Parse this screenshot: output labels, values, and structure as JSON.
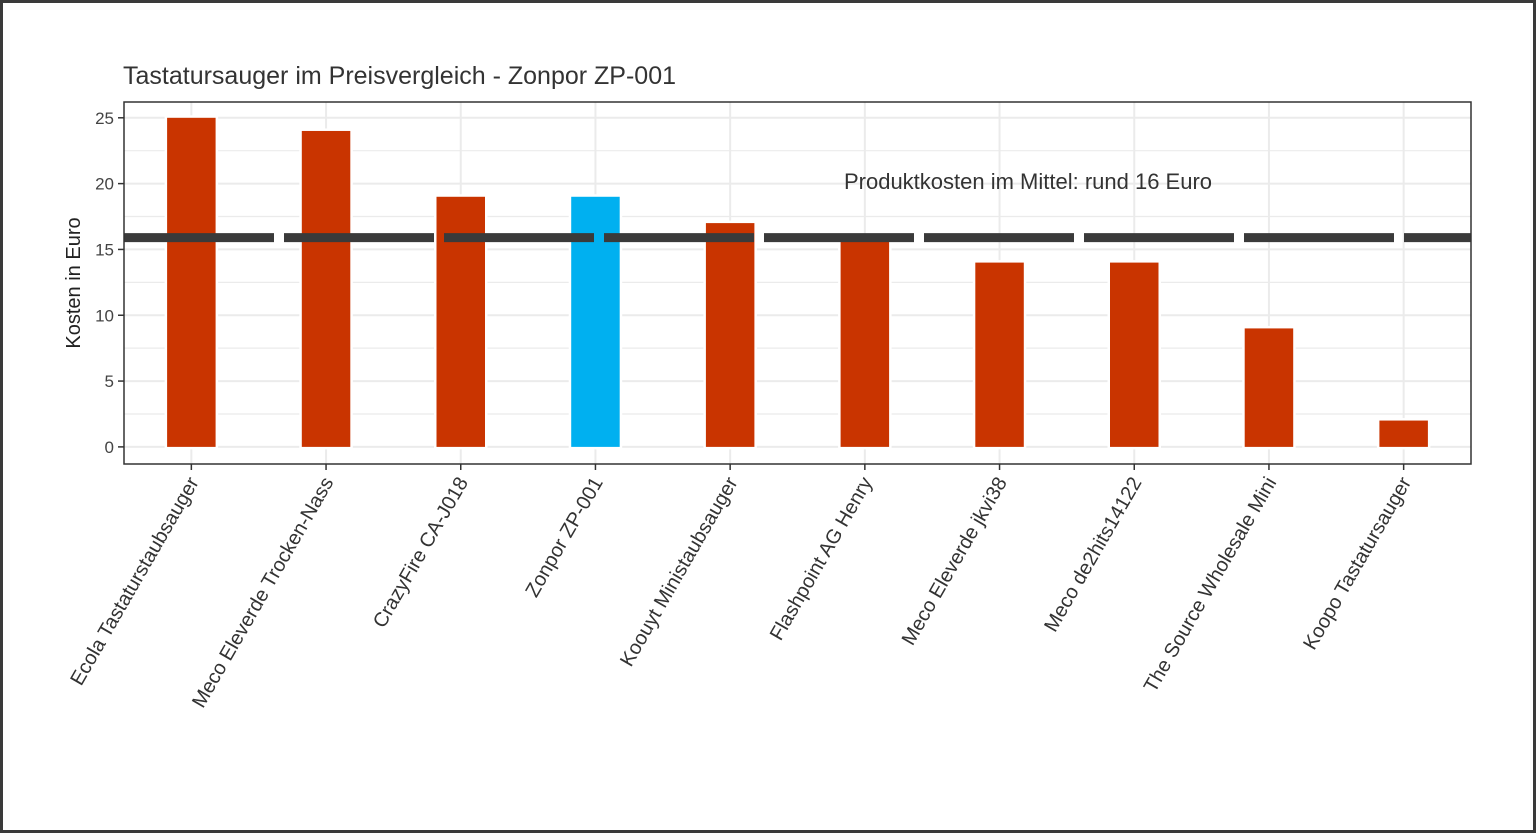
{
  "chart_data": {
    "type": "bar",
    "title": "Tastatursauger im Preisvergleich - Zonpor ZP-001",
    "xlabel": "",
    "ylabel": "Kosten in Euro",
    "categories": [
      "Ecola Tastaturstaubsauger",
      "Meco Eleverde Trocken-Nass",
      "CrazyFire CA-J018",
      "Zonpor ZP-001",
      "Koouyt Ministaubsauger",
      "Flashpoint AG Henry",
      "Meco Eleverde jkvi38",
      "Meco de2hits14122",
      "The Source Wholesale Mini",
      "Koopo Tastatursauger"
    ],
    "values": [
      25,
      24,
      19,
      19,
      17,
      16,
      14,
      14,
      9,
      2
    ],
    "highlight_category": "Zonpor ZP-001",
    "ylim": [
      -1.3,
      26.2
    ],
    "yticks": [
      0,
      5,
      10,
      15,
      20,
      25
    ],
    "grid": true,
    "reference_line": {
      "value": 15.9,
      "style": "dashed",
      "label": "Produktkosten im Mittel: rund 16 Euro"
    },
    "colors": {
      "bar": "#C93400",
      "highlight": "#00B0F0",
      "line": "#3a3a3a",
      "grid": "#ebebeb"
    }
  }
}
